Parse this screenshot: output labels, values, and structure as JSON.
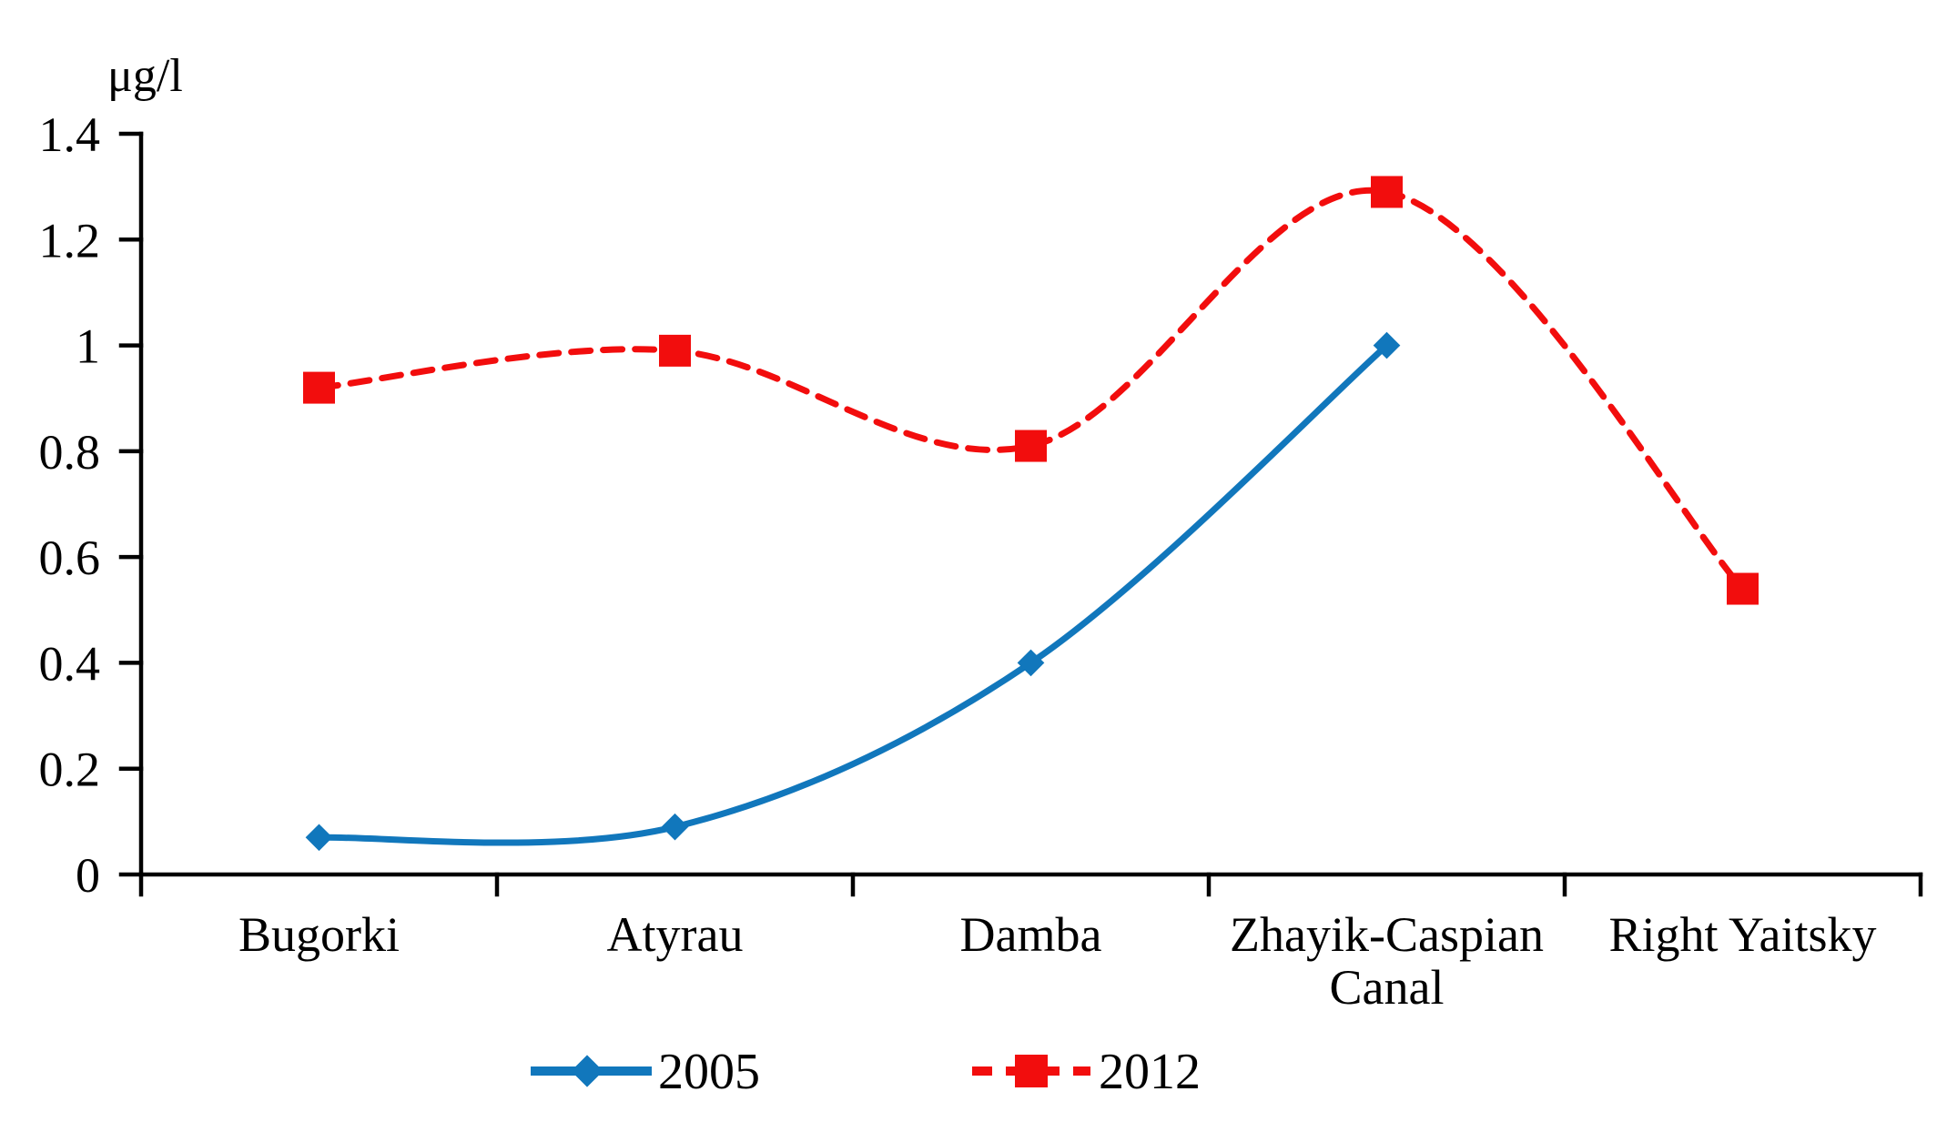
{
  "chart_data": {
    "type": "line",
    "title": "",
    "ylabel": "μg/l",
    "xlabel": "",
    "categories": [
      "Bugorki",
      "Atyrau",
      "Damba",
      "Zhayik-Caspian Canal",
      "Right Yaitsky"
    ],
    "category_lines": [
      [
        "Bugorki"
      ],
      [
        "Atyrau"
      ],
      [
        "Damba"
      ],
      [
        "Zhayik-Caspian",
        "Canal"
      ],
      [
        "Right Yaitsky"
      ]
    ],
    "series": [
      {
        "name": "2005",
        "color": "#1177BC",
        "line_style": "solid",
        "marker": "diamond",
        "values": [
          0.07,
          0.09,
          0.4,
          1.0,
          null
        ]
      },
      {
        "name": "2012",
        "color": "#F20D0D",
        "line_style": "dashed",
        "marker": "square",
        "values": [
          0.92,
          0.99,
          0.81,
          1.29,
          0.54
        ]
      }
    ],
    "ylim": [
      0,
      1.4
    ],
    "ytick_step": 0.2,
    "ytick_labels": [
      "0",
      "0.2",
      "0.4",
      "0.6",
      "0.8",
      "1",
      "1.2",
      "1.4"
    ],
    "grid": false,
    "legend_position": "bottom",
    "line_smoothing": true
  }
}
